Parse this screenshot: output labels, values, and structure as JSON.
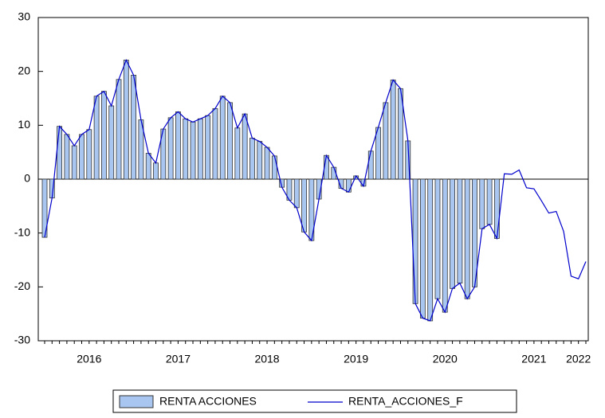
{
  "chart_data": {
    "type": "bar_line",
    "categories": [
      null,
      null,
      null,
      null,
      null,
      null,
      "2016",
      null,
      null,
      null,
      null,
      null,
      null,
      null,
      null,
      null,
      null,
      null,
      "2017",
      null,
      null,
      null,
      null,
      null,
      null,
      null,
      null,
      null,
      null,
      null,
      "2018",
      null,
      null,
      null,
      null,
      null,
      null,
      null,
      null,
      null,
      null,
      null,
      "2019",
      null,
      null,
      null,
      null,
      null,
      null,
      null,
      null,
      null,
      null,
      null,
      "2020",
      null,
      null,
      null,
      null,
      null,
      null,
      null,
      null,
      null,
      null,
      null,
      "2021",
      null,
      null,
      null,
      null,
      null,
      "2022",
      null
    ],
    "series": [
      {
        "name": "RENTA ACCIONES",
        "type": "bar",
        "color": "#a9c6f0",
        "values": [
          -10.8,
          -3.5,
          9.8,
          8.3,
          6.2,
          8.3,
          9.2,
          15.4,
          16.3,
          13.6,
          18.5,
          22.1,
          19.3,
          11.0,
          4.8,
          3.0,
          9.3,
          11.4,
          12.5,
          11.2,
          10.6,
          11.2,
          11.8,
          13.1,
          15.4,
          14.2,
          9.5,
          12.1,
          7.6,
          7.0,
          5.9,
          4.3,
          -1.5,
          -3.9,
          -5.3,
          -9.8,
          -11.4,
          -3.7,
          4.4,
          2.2,
          -1.7,
          -2.4,
          0.6,
          -1.3,
          5.2,
          9.6,
          14.2,
          18.4,
          16.8,
          7.1,
          -23.1,
          -25.8,
          -26.3,
          -22.2,
          -24.7,
          -20.3,
          -19.3,
          -22.2,
          -20.0,
          -9.2,
          -8.4,
          -11.0,
          null,
          null,
          null,
          null,
          null,
          null,
          null,
          null,
          null,
          null,
          null,
          null
        ]
      },
      {
        "name": "RENTA_ACCIONES_F",
        "type": "line",
        "color": "#0000cc",
        "values": [
          -10.8,
          -3.5,
          9.8,
          8.3,
          6.2,
          8.3,
          9.2,
          15.4,
          16.3,
          13.6,
          18.5,
          22.1,
          19.3,
          11.0,
          4.8,
          3.0,
          9.3,
          11.4,
          12.5,
          11.2,
          10.6,
          11.2,
          11.8,
          13.1,
          15.4,
          14.2,
          9.5,
          12.1,
          7.6,
          7.0,
          5.9,
          4.3,
          -1.5,
          -3.9,
          -5.3,
          -9.8,
          -11.4,
          -3.7,
          4.4,
          2.2,
          -1.7,
          -2.4,
          0.6,
          -1.3,
          5.2,
          9.6,
          14.2,
          18.4,
          16.8,
          7.1,
          -23.1,
          -25.8,
          -26.3,
          -22.2,
          -24.7,
          -20.3,
          -19.3,
          -22.2,
          -20.0,
          -9.2,
          -8.4,
          -11.0,
          1.0,
          0.9,
          1.7,
          -1.6,
          -1.8,
          -4.0,
          -6.3,
          -6.0,
          -9.7,
          -18.0,
          -18.5,
          -15.3
        ]
      }
    ],
    "ylim": [
      -30,
      30
    ],
    "yticks": [
      -30,
      -20,
      -10,
      0,
      10,
      20,
      30
    ]
  }
}
